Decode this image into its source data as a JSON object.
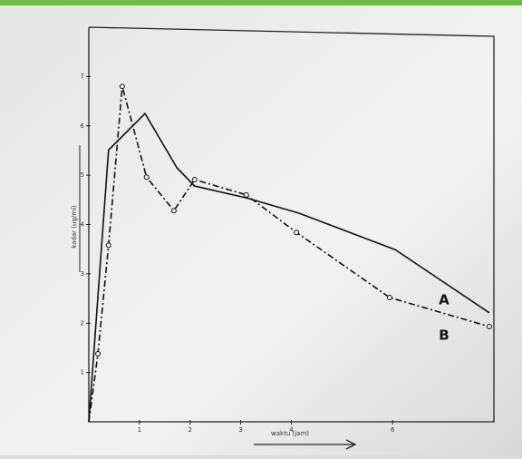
{
  "chart_data": {
    "type": "line",
    "x_label": "waktu (jam)",
    "y_label": "kadar (ug/ml)",
    "xlim": [
      0,
      8
    ],
    "ylim": [
      0,
      8
    ],
    "xticks": [
      1,
      2,
      3,
      4,
      6
    ],
    "yticks": [
      1,
      2,
      3,
      4,
      5,
      6,
      7
    ],
    "series": [
      {
        "name": "A",
        "color": "#111111",
        "style": "solid",
        "markers": false,
        "x": [
          0,
          0.39,
          1.11,
          1.74,
          2.09,
          3.11,
          4.15,
          6.05,
          7.91
        ],
        "values": [
          0,
          5.51,
          6.25,
          5.15,
          4.78,
          4.54,
          4.23,
          3.49,
          2.21
        ]
      },
      {
        "name": "B",
        "color": "#111111",
        "style": "dashdot",
        "markers": true,
        "x": [
          0,
          0.18,
          0.39,
          0.66,
          1.14,
          1.68,
          2.09,
          3.11,
          4.1,
          5.94,
          7.91
        ],
        "values": [
          0,
          1.38,
          3.58,
          6.8,
          4.96,
          4.28,
          4.91,
          4.6,
          3.84,
          2.52,
          1.93
        ]
      }
    ]
  }
}
